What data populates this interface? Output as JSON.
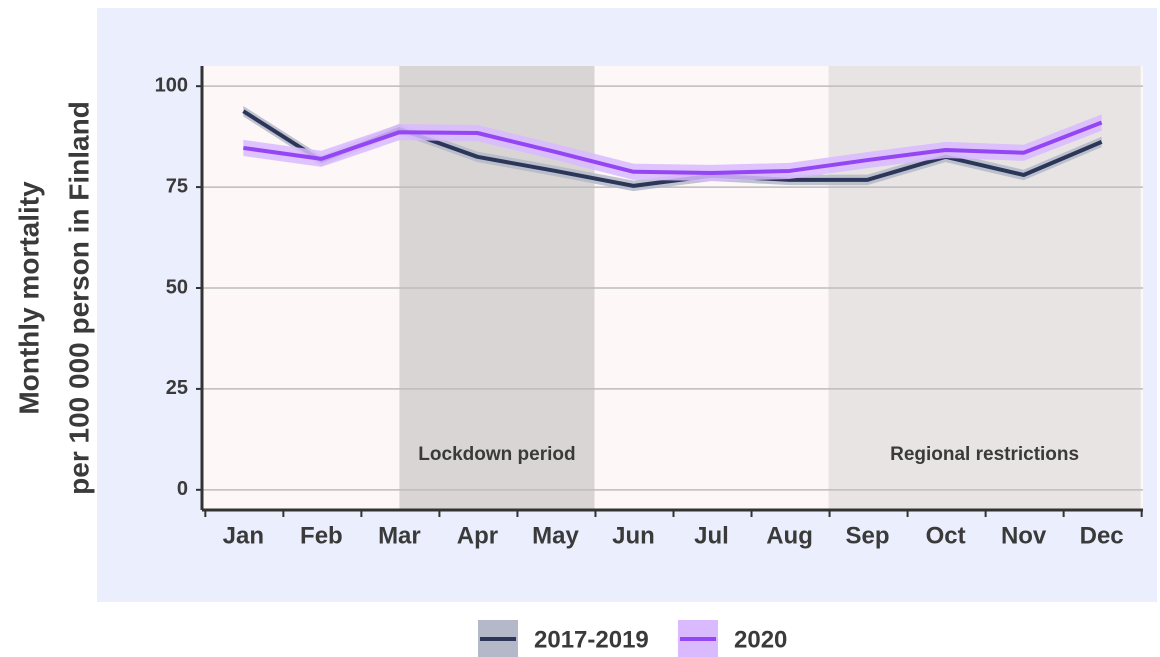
{
  "chart_data": {
    "type": "line",
    "ylabel": [
      "Monthly mortality",
      "per 100 000 person in Finland"
    ],
    "categories": [
      "Jan",
      "Feb",
      "Mar",
      "Apr",
      "May",
      "Jun",
      "Jul",
      "Aug",
      "Sep",
      "Oct",
      "Nov",
      "Dec"
    ],
    "series": [
      {
        "name": "2017-2019",
        "color": "#2b3658",
        "band_color": "#b4b8c8",
        "band_halfwidth": 1.3,
        "values": [
          93.8,
          81.5,
          89.4,
          82.5,
          79.0,
          75.3,
          77.8,
          76.8,
          76.8,
          82.5,
          78.0,
          86.2
        ]
      },
      {
        "name": "2020",
        "color": "#9446f5",
        "band_color": "#d9baff",
        "band_halfwidth": 2.0,
        "values": [
          84.7,
          82.0,
          88.6,
          88.4,
          83.7,
          78.8,
          78.5,
          79.0,
          81.7,
          84.2,
          83.5,
          91.0
        ]
      }
    ],
    "shaded_regions": [
      {
        "label": "Lockdown period",
        "from": 2,
        "to": 4.5,
        "color": "#d9d5d5"
      },
      {
        "label": "Regional restrictions",
        "from": 7.5,
        "to": 11.5,
        "color": "#e8e4e4"
      }
    ],
    "ylim": [
      -5,
      105
    ],
    "yticks": [
      0,
      25,
      50,
      75,
      100
    ],
    "grid": true,
    "legend": "bottom"
  }
}
